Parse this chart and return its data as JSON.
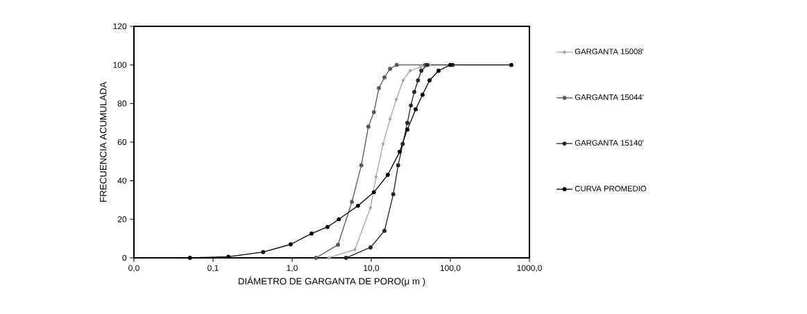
{
  "chart_data": {
    "type": "line",
    "xlabel": "DIÁMETRO DE GARGANTA DE PORO(μ m )",
    "ylabel": "FRECUENCIA ACUMULADA",
    "log": "x",
    "xlim": [
      0.01,
      1000
    ],
    "ylim": [
      0,
      120
    ],
    "xticks": [
      {
        "value": 0.01,
        "label": "0,0"
      },
      {
        "value": 0.1,
        "label": "0,1"
      },
      {
        "value": 1,
        "label": "1,0"
      },
      {
        "value": 10,
        "label": "10,0"
      },
      {
        "value": 100,
        "label": "100,0"
      },
      {
        "value": 1000,
        "label": "1000,0"
      }
    ],
    "yticks": [
      0,
      20,
      40,
      60,
      80,
      100,
      120
    ],
    "grid": false,
    "legend": "right",
    "series": [
      {
        "name": "GARGANTA 15008'",
        "color": "#a6a6a6",
        "marker": "diamond",
        "x": [
          2.9,
          6.2,
          9.8,
          11.5,
          14.1,
          17.3,
          20.7,
          25.3,
          31,
          42,
          55
        ],
        "values": [
          0,
          4.3,
          26,
          42,
          59,
          72,
          82,
          92,
          97,
          99,
          100
        ]
      },
      {
        "name": "GARGANTA 15044'",
        "color": "#595959",
        "marker": "circle",
        "x": [
          2.0,
          3.8,
          5.7,
          7.5,
          9.2,
          10.8,
          12.5,
          14.7,
          17.3,
          21,
          48
        ],
        "values": [
          0,
          6.8,
          29,
          48,
          68,
          75.5,
          88,
          93.5,
          98,
          100,
          100
        ]
      },
      {
        "name": "GARGANTA 15140'",
        "color": "#262626",
        "marker": "circle",
        "x": [
          4.8,
          9.8,
          14.7,
          19,
          21.9,
          25,
          28.6,
          31.7,
          35,
          39,
          43,
          51,
          107
        ],
        "values": [
          0,
          5.4,
          14,
          33,
          48,
          59,
          70,
          79,
          86,
          92,
          97,
          100,
          100
        ]
      },
      {
        "name": "CURVA PROMEDIO",
        "color": "#000000",
        "marker": "circle",
        "x": [
          0.051,
          0.156,
          0.43,
          0.96,
          1.76,
          2.8,
          3.9,
          6.8,
          10.8,
          16.2,
          22.9,
          28.6,
          36.5,
          44.5,
          54.6,
          71,
          100,
          590
        ],
        "values": [
          0,
          0.6,
          3,
          7,
          12.6,
          16,
          20,
          27,
          34,
          43,
          55,
          66.5,
          77,
          84.5,
          92,
          97,
          100,
          100
        ]
      }
    ]
  }
}
